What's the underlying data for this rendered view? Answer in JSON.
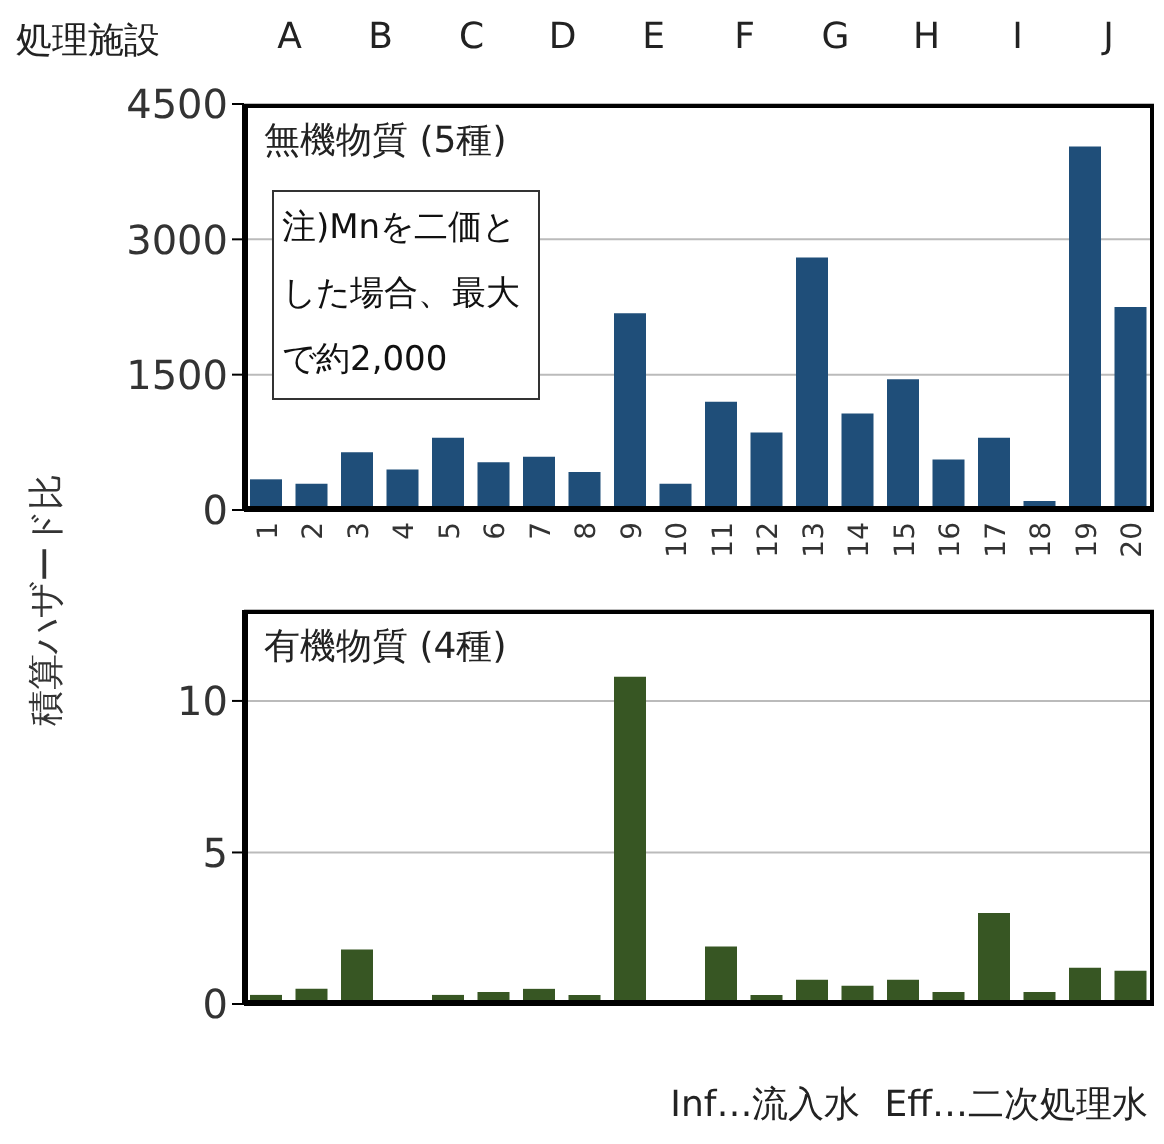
{
  "chart_data": [
    {
      "type": "bar",
      "title": "無機物質 (5種)",
      "ylabel": "積算ハザード比",
      "categories": [
        "1",
        "2",
        "3",
        "4",
        "5",
        "6",
        "7",
        "8",
        "9",
        "10",
        "11",
        "12",
        "13",
        "14",
        "15",
        "16",
        "17",
        "18",
        "19",
        "20"
      ],
      "values": [
        340,
        290,
        640,
        450,
        800,
        530,
        590,
        420,
        2180,
        290,
        1200,
        860,
        2800,
        1070,
        1450,
        560,
        800,
        100,
        4030,
        2250
      ],
      "color": "#1f4e79",
      "ylim": [
        0,
        4500
      ],
      "yticks": [
        0,
        1500,
        3000,
        4500
      ],
      "grid": "y",
      "annotations": [
        "注)Mnを二価とした場合、最大で約2,000",
        "処理施設",
        "A",
        "B",
        "C",
        "D",
        "E",
        "F",
        "G",
        "H",
        "I",
        "J"
      ]
    },
    {
      "type": "bar",
      "title": "有機物質 (4種)",
      "categories": [
        "1",
        "2",
        "3",
        "4",
        "5",
        "6",
        "7",
        "8",
        "9",
        "10",
        "11",
        "12",
        "13",
        "14",
        "15",
        "16",
        "17",
        "18",
        "19",
        "20"
      ],
      "values": [
        0.3,
        0.5,
        1.8,
        0,
        0.3,
        0.4,
        0.5,
        0.3,
        10.8,
        0,
        1.9,
        0.3,
        0.8,
        0.6,
        0.8,
        0.4,
        3.0,
        0.4,
        1.2,
        1.1
      ],
      "color": "#375623",
      "ylim": [
        0,
        13
      ],
      "yticks": [
        0,
        5,
        10
      ],
      "grid": "y",
      "tick_labels": "y",
      "annotations": [
        "Inf…流入水",
        "Eff…二次処理水"
      ]
    }
  ]
}
